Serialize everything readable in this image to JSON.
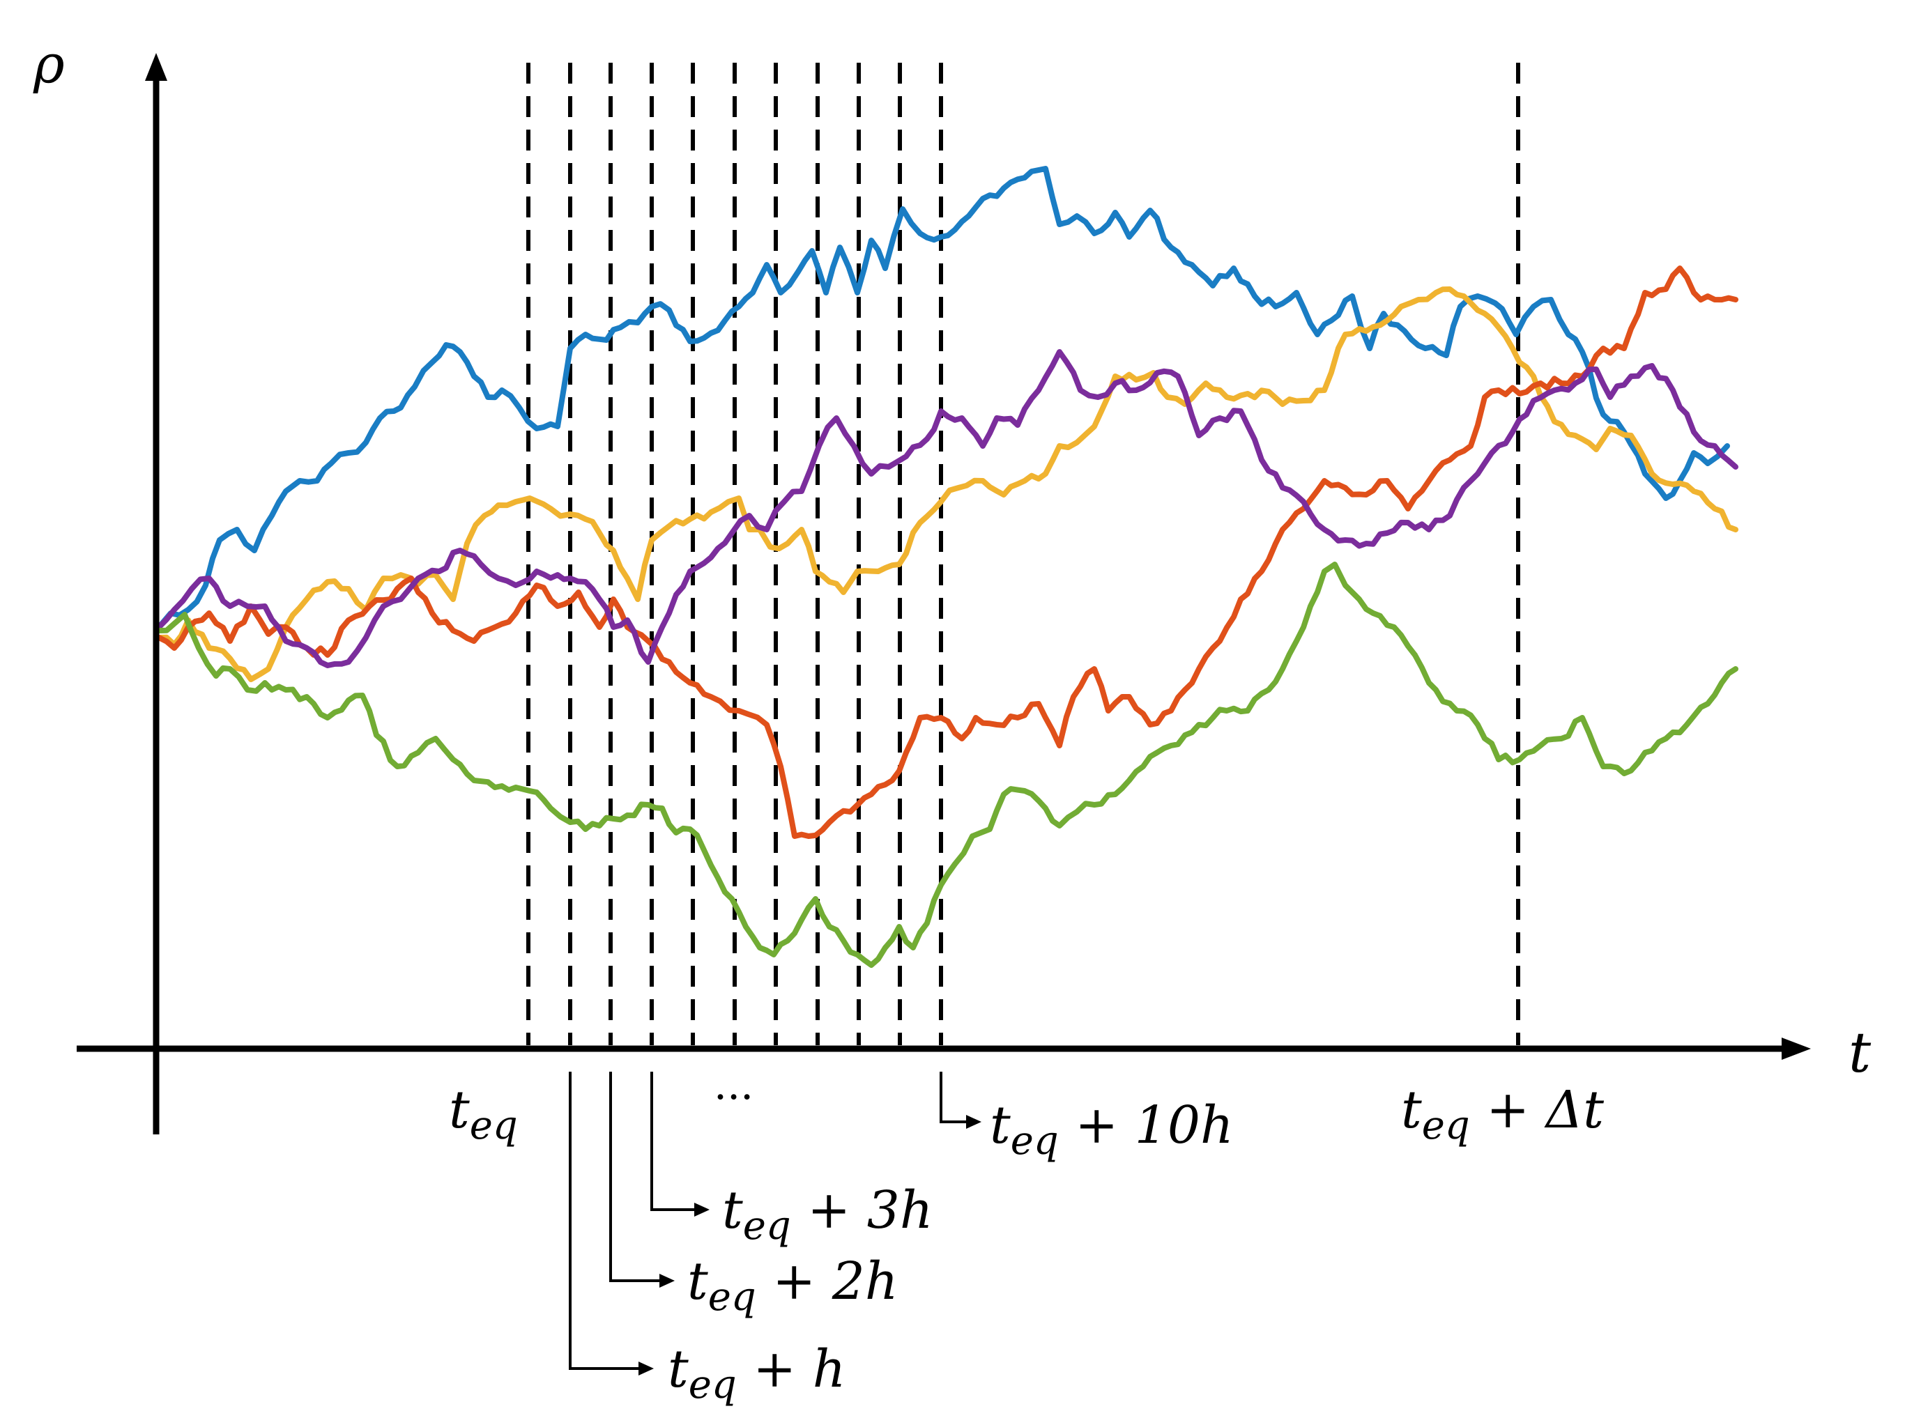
{
  "axes": {
    "y_label": "ρ",
    "x_label": "t"
  },
  "markers": {
    "t_eq": {
      "main": "t",
      "sub": "eq"
    },
    "t_eq_plus_h": {
      "main": "t",
      "sub": "eq",
      "rest": " + h"
    },
    "t_eq_plus_2h": {
      "main": "t",
      "sub": "eq",
      "rest": " + 2h"
    },
    "t_eq_plus_3h": {
      "main": "t",
      "sub": "eq",
      "rest": " + 3h"
    },
    "t_eq_plus_10h": {
      "main": "t",
      "sub": "eq",
      "rest": " + 10h"
    },
    "t_eq_plus_dt": {
      "main": "t",
      "sub": "eq",
      "rest": " + Δt"
    },
    "ellipsis": "···"
  },
  "series_colors": {
    "blue": "#1a7dc4",
    "red": "#e0501a",
    "yellow": "#f0b330",
    "purple": "#7b2d9c",
    "green": "#72ac34"
  }
}
